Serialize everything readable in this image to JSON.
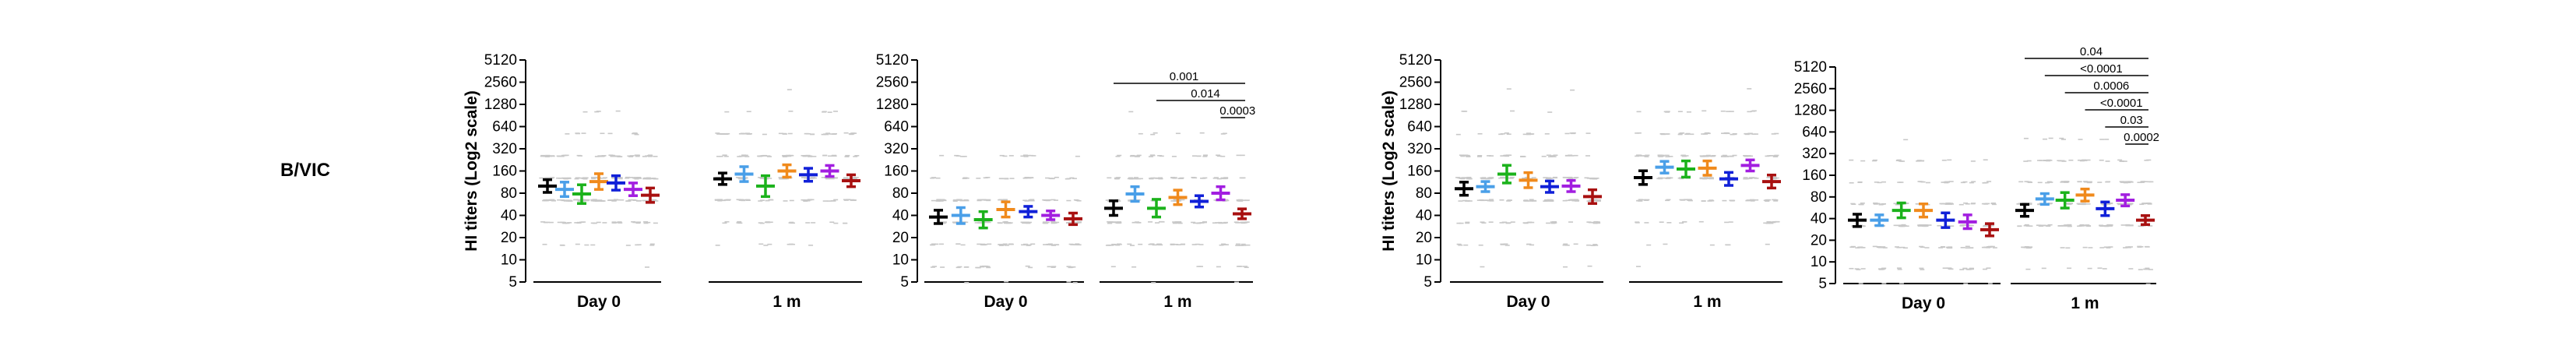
{
  "figure": {
    "row_label": "B/VIC"
  },
  "colors": [
    "#000000",
    "#4a9fe8",
    "#1bb21b",
    "#f08a1c",
    "#1020d8",
    "#a21ee0",
    "#a81010"
  ],
  "chart_data": [
    {
      "type": "scatter",
      "ylabel": "HI titers (Log2 scale)",
      "yscale": "log2",
      "yticks": [
        5,
        10,
        20,
        40,
        80,
        160,
        320,
        640,
        1280,
        2560,
        5120
      ],
      "ylim": [
        5,
        5120
      ],
      "categories": [
        "Day 0",
        "1 m"
      ],
      "series": [
        {
          "color": "#000000",
          "mean": [
            100,
            125
          ],
          "ci_low": [
            82,
            105
          ],
          "ci_high": [
            122,
            150
          ]
        },
        {
          "color": "#4a9fe8",
          "mean": [
            90,
            145
          ],
          "ci_low": [
            72,
            115
          ],
          "ci_high": [
            113,
            183
          ]
        },
        {
          "color": "#1bb21b",
          "mean": [
            78,
            100
          ],
          "ci_low": [
            58,
            72
          ],
          "ci_high": [
            104,
            138
          ]
        },
        {
          "color": "#f08a1c",
          "mean": [
            115,
            160
          ],
          "ci_low": [
            90,
            132
          ],
          "ci_high": [
            147,
            194
          ]
        },
        {
          "color": "#1020d8",
          "mean": [
            110,
            142
          ],
          "ci_low": [
            88,
            116
          ],
          "ci_high": [
            138,
            174
          ]
        },
        {
          "color": "#a21ee0",
          "mean": [
            90,
            160
          ],
          "ci_low": [
            74,
            135
          ],
          "ci_high": [
            110,
            190
          ]
        },
        {
          "color": "#a81010",
          "mean": [
            75,
            118
          ],
          "ci_low": [
            60,
            98
          ],
          "ci_high": [
            94,
            142
          ]
        }
      ],
      "comparisons": []
    },
    {
      "type": "scatter",
      "ylabel": "",
      "yscale": "log2",
      "yticks": [
        5,
        10,
        20,
        40,
        80,
        160,
        320,
        640,
        1280,
        2560,
        5120
      ],
      "ylim": [
        5,
        5120
      ],
      "categories": [
        "Day 0",
        "1 m"
      ],
      "series": [
        {
          "color": "#000000",
          "mean": [
            38,
            50
          ],
          "ci_low": [
            31,
            40
          ],
          "ci_high": [
            47,
            63
          ]
        },
        {
          "color": "#4a9fe8",
          "mean": [
            40,
            78
          ],
          "ci_low": [
            31,
            62
          ],
          "ci_high": [
            51,
            98
          ]
        },
        {
          "color": "#1bb21b",
          "mean": [
            35,
            50
          ],
          "ci_low": [
            27,
            38
          ],
          "ci_high": [
            45,
            66
          ]
        },
        {
          "color": "#f08a1c",
          "mean": [
            48,
            70
          ],
          "ci_low": [
            38,
            56
          ],
          "ci_high": [
            61,
            88
          ]
        },
        {
          "color": "#1020d8",
          "mean": [
            45,
            62
          ],
          "ci_low": [
            38,
            52
          ],
          "ci_high": [
            53,
            74
          ]
        },
        {
          "color": "#a21ee0",
          "mean": [
            40,
            80
          ],
          "ci_low": [
            35,
            65
          ],
          "ci_high": [
            46,
            98
          ]
        },
        {
          "color": "#a81010",
          "mean": [
            36,
            42
          ],
          "ci_low": [
            30,
            36
          ],
          "ci_high": [
            43,
            49
          ]
        }
      ],
      "comparisons": [
        {
          "label": "0.001",
          "from": 0,
          "to": 6
        },
        {
          "label": "0.014",
          "from": 2,
          "to": 6
        },
        {
          "label": "0.0003",
          "from": 5,
          "to": 6
        }
      ]
    },
    {
      "type": "scatter",
      "ylabel": "HI titers (Log2 scale)",
      "yscale": "log2",
      "yticks": [
        5,
        10,
        20,
        40,
        80,
        160,
        320,
        640,
        1280,
        2560,
        5120
      ],
      "ylim": [
        5,
        5120
      ],
      "categories": [
        "Day 0",
        "1 m"
      ],
      "series": [
        {
          "color": "#000000",
          "mean": [
            92,
            130
          ],
          "ci_low": [
            75,
            105
          ],
          "ci_high": [
            113,
            161
          ]
        },
        {
          "color": "#4a9fe8",
          "mean": [
            98,
            180
          ],
          "ci_low": [
            84,
            150
          ],
          "ci_high": [
            115,
            216
          ]
        },
        {
          "color": "#1bb21b",
          "mean": [
            145,
            170
          ],
          "ci_low": [
            110,
            132
          ],
          "ci_high": [
            191,
            219
          ]
        },
        {
          "color": "#f08a1c",
          "mean": [
            120,
            175
          ],
          "ci_low": [
            95,
            140
          ],
          "ci_high": [
            152,
            219
          ]
        },
        {
          "color": "#1020d8",
          "mean": [
            98,
            125
          ],
          "ci_low": [
            82,
            102
          ],
          "ci_high": [
            117,
            153
          ]
        },
        {
          "color": "#a21ee0",
          "mean": [
            100,
            190
          ],
          "ci_low": [
            84,
            160
          ],
          "ci_high": [
            119,
            226
          ]
        },
        {
          "color": "#a81010",
          "mean": [
            72,
            115
          ],
          "ci_low": [
            58,
            94
          ],
          "ci_high": [
            89,
            141
          ]
        }
      ],
      "comparisons": []
    },
    {
      "type": "scatter",
      "ylabel": "",
      "yscale": "log2",
      "yticks": [
        5,
        10,
        20,
        40,
        80,
        160,
        320,
        640,
        1280,
        2560,
        5120
      ],
      "ylim": [
        5,
        5120
      ],
      "categories": [
        "Day 0",
        "1 m"
      ],
      "series": [
        {
          "color": "#000000",
          "mean": [
            38,
            52
          ],
          "ci_low": [
            31,
            43
          ],
          "ci_high": [
            46,
            63
          ]
        },
        {
          "color": "#4a9fe8",
          "mean": [
            38,
            75
          ],
          "ci_low": [
            32,
            63
          ],
          "ci_high": [
            45,
            89
          ]
        },
        {
          "color": "#1bb21b",
          "mean": [
            52,
            72
          ],
          "ci_low": [
            41,
            56
          ],
          "ci_high": [
            66,
            92
          ]
        },
        {
          "color": "#f08a1c",
          "mean": [
            52,
            85
          ],
          "ci_low": [
            42,
            70
          ],
          "ci_high": [
            64,
            103
          ]
        },
        {
          "color": "#1020d8",
          "mean": [
            38,
            55
          ],
          "ci_low": [
            30,
            44
          ],
          "ci_high": [
            48,
            68
          ]
        },
        {
          "color": "#a21ee0",
          "mean": [
            36,
            72
          ],
          "ci_low": [
            29,
            60
          ],
          "ci_high": [
            45,
            86
          ]
        },
        {
          "color": "#a81010",
          "mean": [
            28,
            38
          ],
          "ci_low": [
            23,
            33
          ],
          "ci_high": [
            34,
            44
          ]
        }
      ],
      "comparisons": [
        {
          "label": "0.04",
          "from": 0,
          "to": 6
        },
        {
          "label": "<0.0001",
          "from": 1,
          "to": 6
        },
        {
          "label": "0.0006",
          "from": 2,
          "to": 6
        },
        {
          "label": "<0.0001",
          "from": 3,
          "to": 6
        },
        {
          "label": "0.03",
          "from": 4,
          "to": 6
        },
        {
          "label": "0.0002",
          "from": 5,
          "to": 6
        }
      ]
    }
  ]
}
